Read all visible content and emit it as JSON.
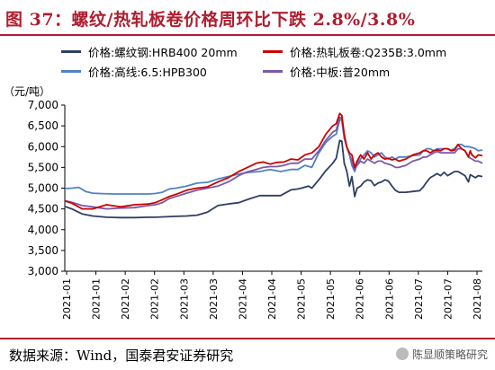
{
  "header": {
    "title": "图 37：螺纹/热轧板卷价格周环比下跌 2.8%/3.8%"
  },
  "colors": {
    "accent": "#b01e2f"
  },
  "footer": {
    "source": "数据来源：Wind，国泰君安证券研究",
    "watermark": "陈显顺策略研究",
    "watermark_icon": "wechat-icon"
  },
  "chart_data": {
    "type": "line",
    "ylabel": "（元/吨）",
    "ylim": [
      3000,
      7000
    ],
    "yticks": [
      3000,
      3500,
      4000,
      4500,
      5000,
      5500,
      6000,
      6500,
      7000
    ],
    "ytick_labels": [
      "3,000",
      "3,500",
      "4,000",
      "4,500",
      "5,000",
      "5,500",
      "6,000",
      "6,500",
      "7,000"
    ],
    "xtick_labels": [
      "2021-01",
      "2021-01",
      "2021-02",
      "2021-02",
      "2021-03",
      "2021-03",
      "2021-04",
      "2021-04",
      "2021-05",
      "2021-05",
      "2021-06",
      "2021-06",
      "2021-07",
      "2021-07",
      "2021-08"
    ],
    "grid": false,
    "legend": "top",
    "series": [
      {
        "name": "价格:螺纹钢:HRB400 20mm",
        "color": "#2e3f63",
        "points": [
          [
            0,
            4560
          ],
          [
            2,
            4500
          ],
          [
            5,
            4380
          ],
          [
            8,
            4330
          ],
          [
            12,
            4300
          ],
          [
            16,
            4290
          ],
          [
            20,
            4290
          ],
          [
            24,
            4300
          ],
          [
            26,
            4300
          ],
          [
            29,
            4310
          ],
          [
            32,
            4320
          ],
          [
            35,
            4330
          ],
          [
            38,
            4350
          ],
          [
            41,
            4420
          ],
          [
            44,
            4580
          ],
          [
            47,
            4620
          ],
          [
            50,
            4650
          ],
          [
            53,
            4740
          ],
          [
            56,
            4820
          ],
          [
            59,
            4820
          ],
          [
            62,
            4820
          ],
          [
            65,
            4960
          ],
          [
            67,
            4980
          ],
          [
            68,
            5000
          ],
          [
            70,
            5050
          ],
          [
            71,
            5000
          ],
          [
            73,
            5200
          ],
          [
            75,
            5420
          ],
          [
            77,
            5600
          ],
          [
            78,
            5720
          ],
          [
            79,
            6150
          ],
          [
            79.6,
            6130
          ],
          [
            80.3,
            5600
          ],
          [
            81,
            5420
          ],
          [
            81.8,
            5050
          ],
          [
            82.5,
            5280
          ],
          [
            83.3,
            4800
          ],
          [
            84,
            5000
          ],
          [
            85,
            5050
          ],
          [
            86,
            5150
          ],
          [
            87,
            5200
          ],
          [
            88,
            5180
          ],
          [
            89,
            5060
          ],
          [
            90,
            5120
          ],
          [
            91,
            5150
          ],
          [
            92,
            5200
          ],
          [
            93,
            5170
          ],
          [
            94,
            5050
          ],
          [
            95,
            4950
          ],
          [
            96,
            4900
          ],
          [
            98,
            4900
          ],
          [
            100,
            4920
          ],
          [
            102,
            4940
          ],
          [
            103,
            5030
          ],
          [
            104,
            5150
          ],
          [
            105,
            5250
          ],
          [
            106,
            5300
          ],
          [
            107,
            5350
          ],
          [
            108,
            5300
          ],
          [
            109,
            5380
          ],
          [
            110,
            5300
          ],
          [
            111,
            5350
          ],
          [
            112,
            5400
          ],
          [
            113,
            5400
          ],
          [
            114,
            5350
          ],
          [
            115,
            5300
          ],
          [
            116,
            5150
          ],
          [
            116.5,
            5320
          ],
          [
            117,
            5300
          ],
          [
            118,
            5250
          ],
          [
            118.8,
            5300
          ],
          [
            120,
            5280
          ]
        ]
      },
      {
        "name": "价格:热轧板卷:Q235B:3.0mm",
        "color": "#cc0000",
        "points": [
          [
            0,
            4690
          ],
          [
            2,
            4640
          ],
          [
            5,
            4500
          ],
          [
            8,
            4500
          ],
          [
            12,
            4600
          ],
          [
            16,
            4550
          ],
          [
            20,
            4600
          ],
          [
            24,
            4620
          ],
          [
            26,
            4650
          ],
          [
            28,
            4720
          ],
          [
            30,
            4800
          ],
          [
            32,
            4850
          ],
          [
            35,
            4950
          ],
          [
            38,
            5000
          ],
          [
            41,
            5030
          ],
          [
            44,
            5150
          ],
          [
            47,
            5250
          ],
          [
            50,
            5400
          ],
          [
            52,
            5480
          ],
          [
            55,
            5600
          ],
          [
            57,
            5630
          ],
          [
            59,
            5580
          ],
          [
            61,
            5620
          ],
          [
            63,
            5630
          ],
          [
            65,
            5700
          ],
          [
            67,
            5680
          ],
          [
            69,
            5800
          ],
          [
            71,
            5850
          ],
          [
            73,
            6000
          ],
          [
            75,
            6300
          ],
          [
            77,
            6500
          ],
          [
            78,
            6550
          ],
          [
            79,
            6800
          ],
          [
            79.6,
            6750
          ],
          [
            80.3,
            6300
          ],
          [
            81,
            6000
          ],
          [
            81.8,
            5850
          ],
          [
            82.5,
            5800
          ],
          [
            83.3,
            5500
          ],
          [
            84,
            5650
          ],
          [
            85,
            5800
          ],
          [
            86,
            5700
          ],
          [
            87,
            5850
          ],
          [
            88,
            5700
          ],
          [
            89,
            5800
          ],
          [
            90,
            5850
          ],
          [
            91,
            5750
          ],
          [
            92,
            5700
          ],
          [
            93,
            5720
          ],
          [
            94,
            5680
          ],
          [
            95,
            5700
          ],
          [
            96,
            5650
          ],
          [
            98,
            5700
          ],
          [
            100,
            5800
          ],
          [
            102,
            5850
          ],
          [
            103,
            5900
          ],
          [
            104,
            5900
          ],
          [
            105,
            5850
          ],
          [
            106,
            5900
          ],
          [
            107,
            5920
          ],
          [
            108,
            5900
          ],
          [
            109,
            5950
          ],
          [
            110,
            5950
          ],
          [
            111,
            5900
          ],
          [
            112,
            5920
          ],
          [
            113,
            6050
          ],
          [
            114,
            5950
          ],
          [
            115,
            5900
          ],
          [
            116,
            5750
          ],
          [
            116.5,
            5900
          ],
          [
            117,
            5800
          ],
          [
            118,
            5730
          ],
          [
            118.8,
            5800
          ],
          [
            120,
            5780
          ]
        ]
      },
      {
        "name": "价格:高线:6.5:HPB300",
        "color": "#4f82c3",
        "points": [
          [
            0,
            4990
          ],
          [
            2,
            5000
          ],
          [
            4,
            5020
          ],
          [
            6,
            4920
          ],
          [
            8,
            4880
          ],
          [
            10,
            4870
          ],
          [
            14,
            4860
          ],
          [
            18,
            4860
          ],
          [
            22,
            4860
          ],
          [
            24,
            4860
          ],
          [
            26,
            4870
          ],
          [
            28,
            4900
          ],
          [
            30,
            4980
          ],
          [
            32,
            5000
          ],
          [
            35,
            5050
          ],
          [
            38,
            5120
          ],
          [
            41,
            5140
          ],
          [
            44,
            5220
          ],
          [
            47,
            5280
          ],
          [
            50,
            5340
          ],
          [
            53,
            5380
          ],
          [
            56,
            5400
          ],
          [
            59,
            5450
          ],
          [
            62,
            5400
          ],
          [
            65,
            5450
          ],
          [
            67,
            5450
          ],
          [
            69,
            5550
          ],
          [
            71,
            5500
          ],
          [
            73,
            5850
          ],
          [
            75,
            6100
          ],
          [
            77,
            6250
          ],
          [
            78,
            6300
          ],
          [
            79,
            6650
          ],
          [
            79.6,
            6630
          ],
          [
            80.3,
            6200
          ],
          [
            81,
            6000
          ],
          [
            81.8,
            5800
          ],
          [
            82.5,
            5550
          ],
          [
            83.3,
            5400
          ],
          [
            84,
            5600
          ],
          [
            85,
            5700
          ],
          [
            86,
            5800
          ],
          [
            87,
            5900
          ],
          [
            88,
            5850
          ],
          [
            89,
            5750
          ],
          [
            90,
            5800
          ],
          [
            91,
            5850
          ],
          [
            92,
            5750
          ],
          [
            93,
            5700
          ],
          [
            94,
            5750
          ],
          [
            95,
            5700
          ],
          [
            96,
            5750
          ],
          [
            98,
            5750
          ],
          [
            100,
            5780
          ],
          [
            102,
            5800
          ],
          [
            103,
            5900
          ],
          [
            104,
            5950
          ],
          [
            105,
            5950
          ],
          [
            106,
            5900
          ],
          [
            107,
            5950
          ],
          [
            108,
            5950
          ],
          [
            109,
            5950
          ],
          [
            110,
            5950
          ],
          [
            111,
            5920
          ],
          [
            112,
            5950
          ],
          [
            113,
            6050
          ],
          [
            114,
            6050
          ],
          [
            115,
            6000
          ],
          [
            116,
            6000
          ],
          [
            117,
            5980
          ],
          [
            118,
            5950
          ],
          [
            118.8,
            5900
          ],
          [
            120,
            5920
          ]
        ]
      },
      {
        "name": "价格:中板:普20mm",
        "color": "#7b58a8",
        "points": [
          [
            0,
            4700
          ],
          [
            2,
            4660
          ],
          [
            5,
            4580
          ],
          [
            8,
            4550
          ],
          [
            12,
            4500
          ],
          [
            16,
            4520
          ],
          [
            20,
            4530
          ],
          [
            24,
            4580
          ],
          [
            26,
            4600
          ],
          [
            28,
            4650
          ],
          [
            30,
            4750
          ],
          [
            32,
            4800
          ],
          [
            35,
            4880
          ],
          [
            38,
            4950
          ],
          [
            41,
            5000
          ],
          [
            44,
            5050
          ],
          [
            47,
            5150
          ],
          [
            50,
            5300
          ],
          [
            52,
            5380
          ],
          [
            55,
            5450
          ],
          [
            57,
            5500
          ],
          [
            59,
            5520
          ],
          [
            61,
            5520
          ],
          [
            63,
            5550
          ],
          [
            65,
            5600
          ],
          [
            67,
            5600
          ],
          [
            69,
            5700
          ],
          [
            71,
            5700
          ],
          [
            73,
            5900
          ],
          [
            75,
            6150
          ],
          [
            77,
            6350
          ],
          [
            78,
            6400
          ],
          [
            79,
            6700
          ],
          [
            79.6,
            6680
          ],
          [
            80.3,
            6250
          ],
          [
            81,
            6000
          ],
          [
            81.8,
            5800
          ],
          [
            82.5,
            5650
          ],
          [
            83.3,
            5450
          ],
          [
            84,
            5550
          ],
          [
            85,
            5650
          ],
          [
            86,
            5600
          ],
          [
            87,
            5700
          ],
          [
            88,
            5650
          ],
          [
            89,
            5600
          ],
          [
            90,
            5650
          ],
          [
            91,
            5650
          ],
          [
            92,
            5600
          ],
          [
            93,
            5580
          ],
          [
            94,
            5550
          ],
          [
            95,
            5500
          ],
          [
            96,
            5500
          ],
          [
            98,
            5550
          ],
          [
            100,
            5650
          ],
          [
            102,
            5700
          ],
          [
            103,
            5750
          ],
          [
            104,
            5750
          ],
          [
            105,
            5800
          ],
          [
            106,
            5850
          ],
          [
            107,
            5880
          ],
          [
            108,
            5850
          ],
          [
            109,
            5850
          ],
          [
            110,
            5850
          ],
          [
            111,
            5850
          ],
          [
            112,
            5850
          ],
          [
            113,
            5950
          ],
          [
            114,
            5950
          ],
          [
            115,
            5900
          ],
          [
            116,
            5750
          ],
          [
            117,
            5700
          ],
          [
            118,
            5650
          ],
          [
            118.8,
            5650
          ],
          [
            120,
            5600
          ]
        ]
      }
    ]
  }
}
